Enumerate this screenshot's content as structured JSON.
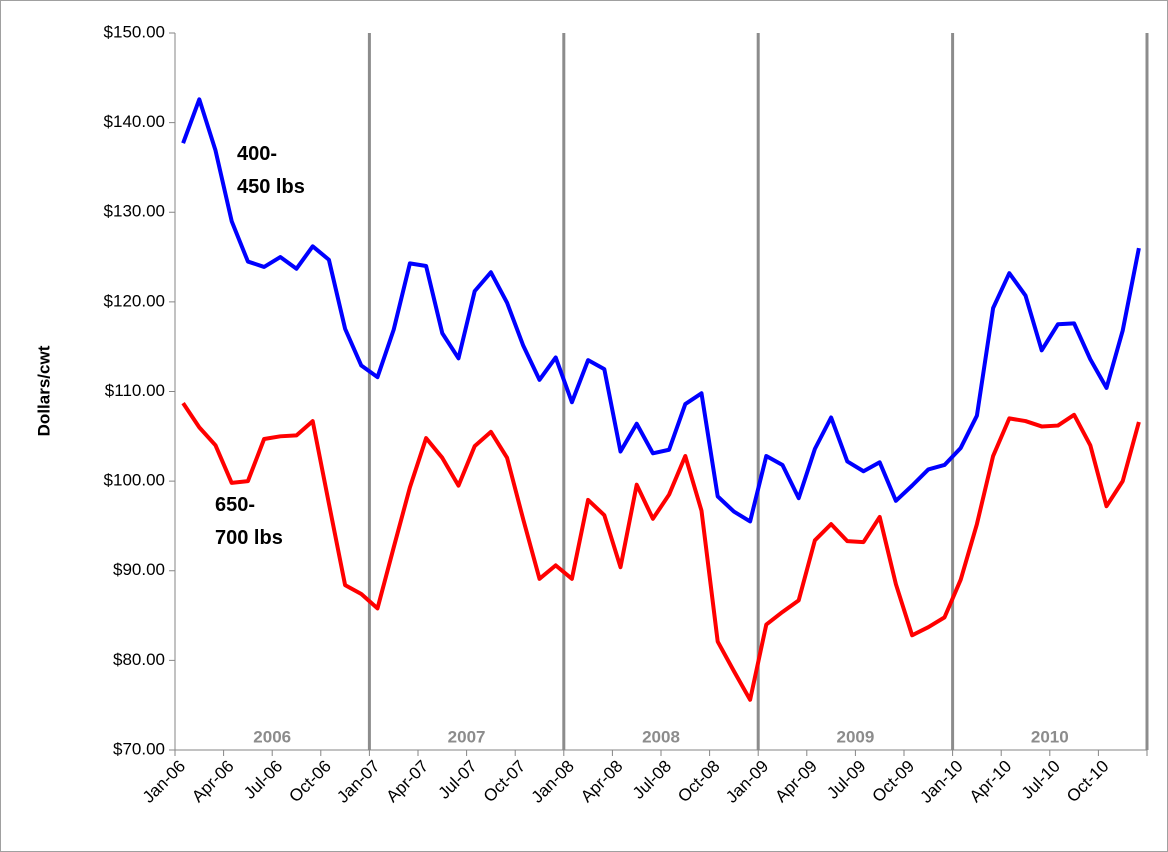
{
  "chart_data": {
    "type": "line",
    "y_label": "Dollars/cwt",
    "categories": [
      "Jan-06",
      null,
      null,
      "Apr-06",
      null,
      null,
      "Jul-06",
      null,
      null,
      "Oct-06",
      null,
      null,
      "Jan-07",
      null,
      null,
      "Apr-07",
      null,
      null,
      "Jul-07",
      null,
      null,
      "Oct-07",
      null,
      null,
      "Jan-08",
      null,
      null,
      "Apr-08",
      null,
      null,
      "Jul-08",
      null,
      null,
      "Oct-08",
      null,
      null,
      "Jan-09",
      null,
      null,
      "Apr-09",
      null,
      null,
      "Jul-09",
      null,
      null,
      "Oct-09",
      null,
      null,
      "Jan-10",
      null,
      null,
      "Apr-10",
      null,
      null,
      "Jul-10",
      null,
      null,
      "Oct-10",
      null,
      null
    ],
    "year_labels": [
      "2006",
      "2007",
      "2008",
      "2009",
      "2010"
    ],
    "series": [
      {
        "name": "400-\n450 lbs",
        "color": "#0000ff",
        "values": [
          137.7,
          142.6,
          136.9,
          129.0,
          124.5,
          123.9,
          125.0,
          123.7,
          126.2,
          124.7,
          117.0,
          112.9,
          111.6,
          116.9,
          124.3,
          124.0,
          116.5,
          113.7,
          121.2,
          123.3,
          119.9,
          115.1,
          111.3,
          113.8,
          108.8,
          113.5,
          112.5,
          103.3,
          106.4,
          103.1,
          103.5,
          108.6,
          109.8,
          98.3,
          96.6,
          95.5,
          102.8,
          101.8,
          98.1,
          103.6,
          107.1,
          102.2,
          101.1,
          102.1,
          97.8,
          99.5,
          101.3,
          101.8,
          103.7,
          107.3,
          119.3,
          123.2,
          120.7,
          114.6,
          117.5,
          117.6,
          113.6,
          110.4,
          116.8,
          126.0
        ]
      },
      {
        "name": "650-\n700 lbs",
        "color": "#ff0000",
        "values": [
          108.7,
          106.0,
          104.0,
          99.8,
          100.0,
          104.7,
          105.0,
          105.1,
          106.7,
          97.5,
          88.4,
          87.4,
          85.8,
          92.6,
          99.3,
          104.8,
          102.6,
          99.5,
          103.9,
          105.5,
          102.6,
          95.7,
          89.1,
          90.6,
          89.1,
          97.9,
          96.2,
          90.4,
          99.6,
          95.8,
          98.5,
          102.8,
          96.7,
          82.1,
          78.8,
          75.6,
          84.0,
          85.4,
          86.7,
          93.4,
          95.2,
          93.3,
          93.2,
          96.0,
          88.5,
          82.8,
          83.7,
          84.8,
          89.0,
          95.2,
          102.8,
          107.0,
          106.7,
          106.1,
          106.2,
          107.4,
          104.0,
          97.2,
          100.0,
          106.6
        ]
      }
    ],
    "ylim": [
      70,
      150
    ],
    "yticks": [
      {
        "value": 70,
        "label": "$70.00"
      },
      {
        "value": 80,
        "label": "$80.00"
      },
      {
        "value": 90,
        "label": "$90.00"
      },
      {
        "value": 100,
        "label": "$100.00"
      },
      {
        "value": 110,
        "label": "$110.00"
      },
      {
        "value": 120,
        "label": "$120.00"
      },
      {
        "value": 130,
        "label": "$130.00"
      },
      {
        "value": 140,
        "label": "$140.00"
      },
      {
        "value": 150,
        "label": "$150.00"
      }
    ],
    "grid": false
  }
}
